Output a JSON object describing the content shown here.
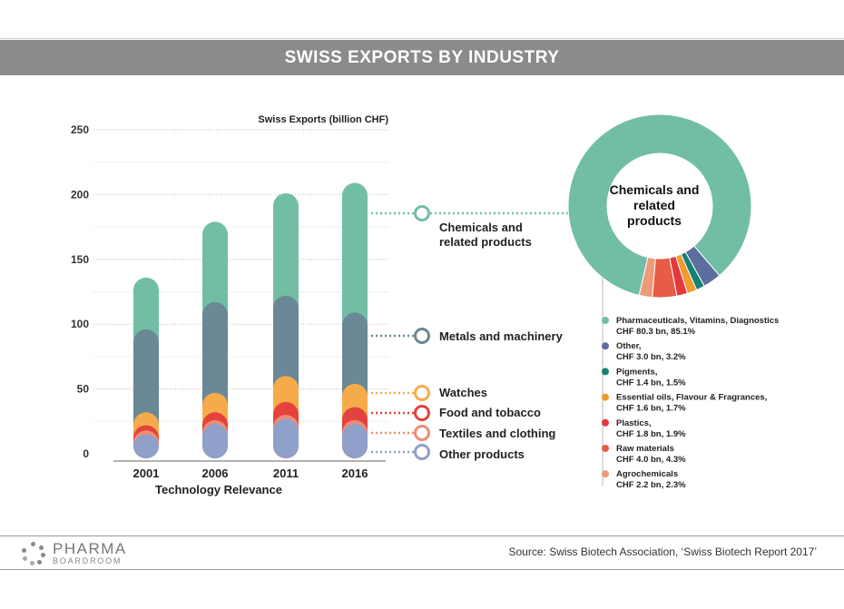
{
  "header": {
    "title": "SWISS EXPORTS BY INDUSTRY"
  },
  "chart_data": [
    {
      "type": "bar",
      "title": "Swiss Exports (billion CHF)",
      "xlabel": "Technology Relevance",
      "ylabel": "",
      "ylim": [
        0,
        250
      ],
      "yticks": [
        0,
        50,
        100,
        150,
        200,
        250
      ],
      "grid": true,
      "stacked": true,
      "categories": [
        "2001",
        "2006",
        "2011",
        "2016"
      ],
      "series": [
        {
          "name": "Other products",
          "values": [
            15,
            23,
            27,
            23
          ],
          "color": "#8fa0cb"
        },
        {
          "name": "Textiles and clothing",
          "values": [
            3,
            3,
            3,
            3
          ],
          "color": "#ef8c72"
        },
        {
          "name": "Food and  tobacco",
          "values": [
            4,
            6,
            10,
            10
          ],
          "color": "#e3423e"
        },
        {
          "name": "Watches",
          "values": [
            10,
            15,
            20,
            18
          ],
          "color": "#f6ab4b"
        },
        {
          "name": "Metals and machinery",
          "values": [
            64,
            70,
            62,
            55
          ],
          "color": "#6a8895"
        },
        {
          "name": "Chemicals and related products",
          "values": [
            40,
            62,
            79,
            100
          ],
          "color": "#72bea4"
        }
      ]
    },
    {
      "type": "pie",
      "center_label": "Chemicals and related products",
      "slices": [
        {
          "label": "Pharmaceuticals, Vitamins, Diagnostics",
          "detail": "CHF 80.3 bn, 85.1%",
          "value": 85.1,
          "color": "#72bea4"
        },
        {
          "label": "Other,",
          "detail": "CHF 3.0 bn, 3.2%",
          "value": 3.2,
          "color": "#5b6e9e"
        },
        {
          "label": "Pigments,",
          "detail": "CHF 1.4 bn, 1.5%",
          "value": 1.5,
          "color": "#138173"
        },
        {
          "label": "Essential oils, Flavour & Fragrances,",
          "detail": "CHF 1.6 bn, 1.7%",
          "value": 1.7,
          "color": "#f09a2f"
        },
        {
          "label": "Plastics,",
          "detail": "CHF 1.8 bn, 1.9%",
          "value": 1.9,
          "color": "#e4373e"
        },
        {
          "label": "Raw materials",
          "detail": "CHF 4.0 bn, 4.3%",
          "value": 4.3,
          "color": "#e65c47"
        },
        {
          "label": "Agrochemicals",
          "detail": "CHF 2.2 bn, 2.3%",
          "value": 2.3,
          "color": "#ec9a77"
        }
      ]
    }
  ],
  "footer": {
    "logo_main": "PHARMA",
    "logo_sub": "BOARDROOM",
    "source": "Source:  Swiss Biotech Association, ‘Swiss Biotech Report 2017’"
  }
}
